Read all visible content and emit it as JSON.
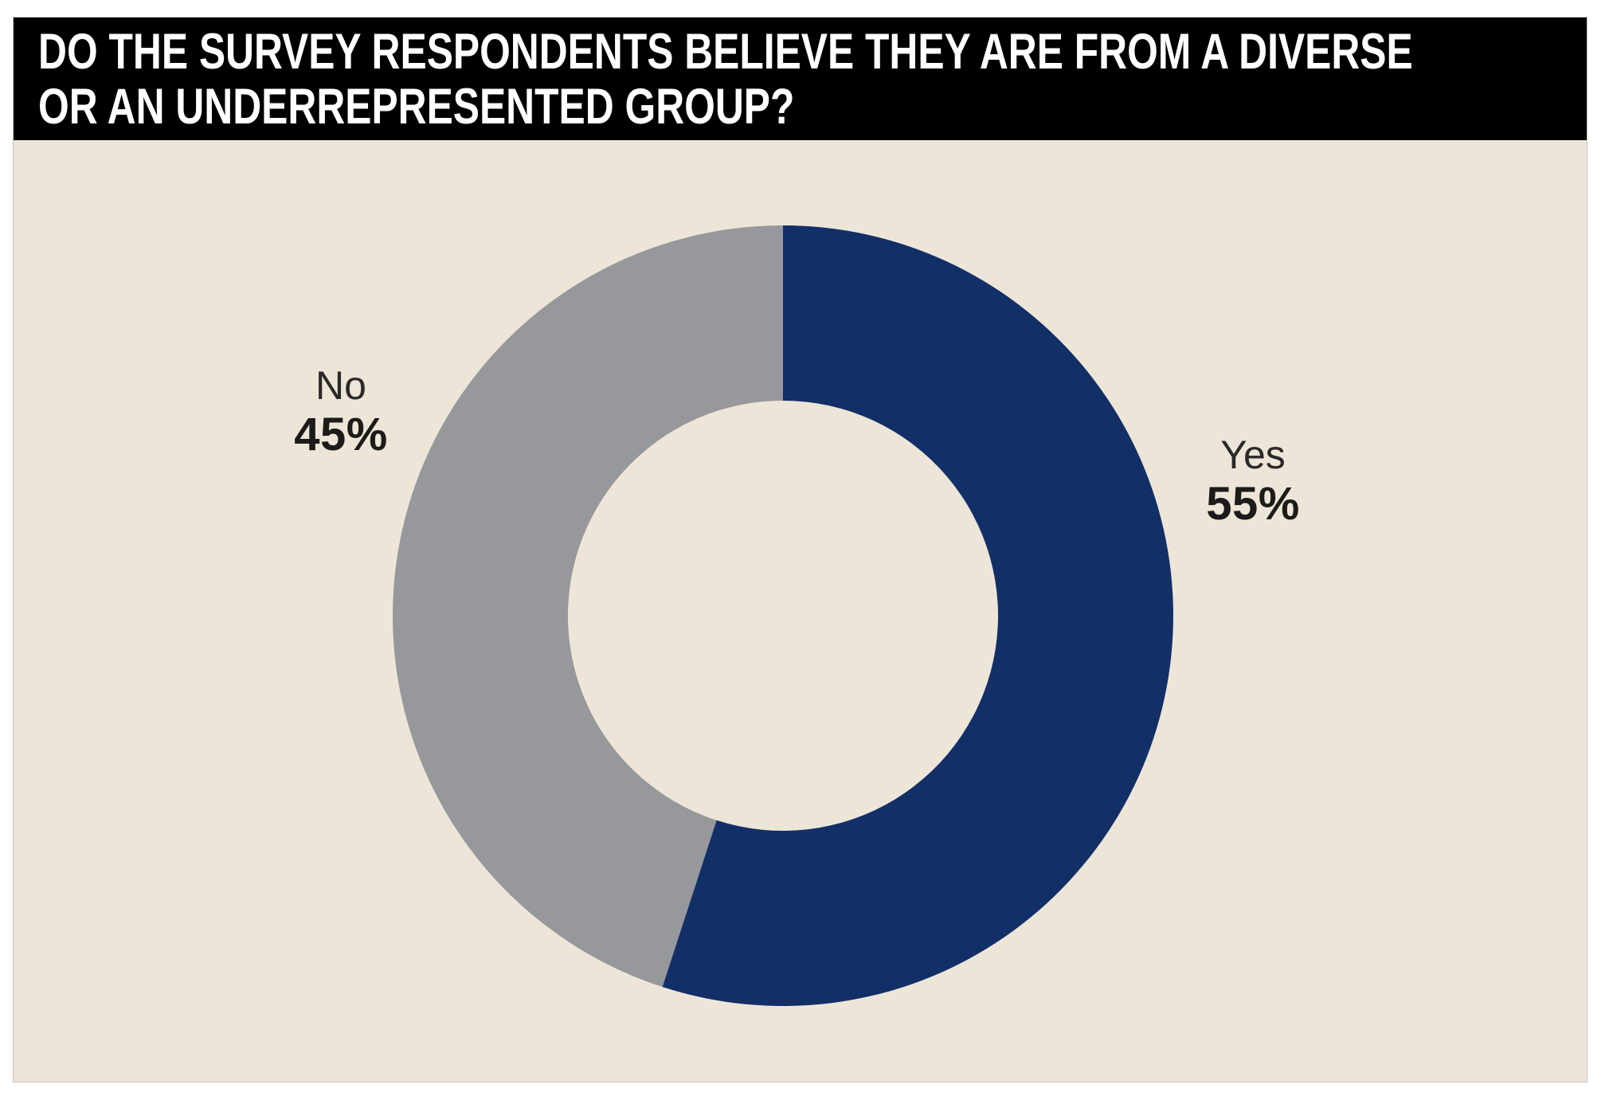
{
  "header": {
    "title_lines": [
      "DO THE SURVEY RESPONDENTS BELIEVE THEY ARE FROM A DIVERSE",
      "OR AN UNDERREPRESENTED GROUP?"
    ]
  },
  "colors": {
    "title_bar_bg": "#000000",
    "title_text": "#ffffff",
    "panel_bg": "#ede6d8",
    "page_bg": "#ffffff",
    "label_text": "#1c1b19"
  },
  "chart_data": {
    "type": "pie",
    "subtype": "donut",
    "title": "DO THE SURVEY RESPONDENTS BELIEVE THEY ARE FROM A DIVERSE OR AN UNDERREPRESENTED GROUP?",
    "start_angle_deg": 0,
    "direction": "clockwise",
    "legend_position": "labels-beside-slices",
    "segments": [
      {
        "label": "Yes",
        "value": 55,
        "value_label": "55%",
        "color": "#122f68"
      },
      {
        "label": "No",
        "value": 45,
        "value_label": "45%",
        "color": "#97989b"
      }
    ]
  }
}
